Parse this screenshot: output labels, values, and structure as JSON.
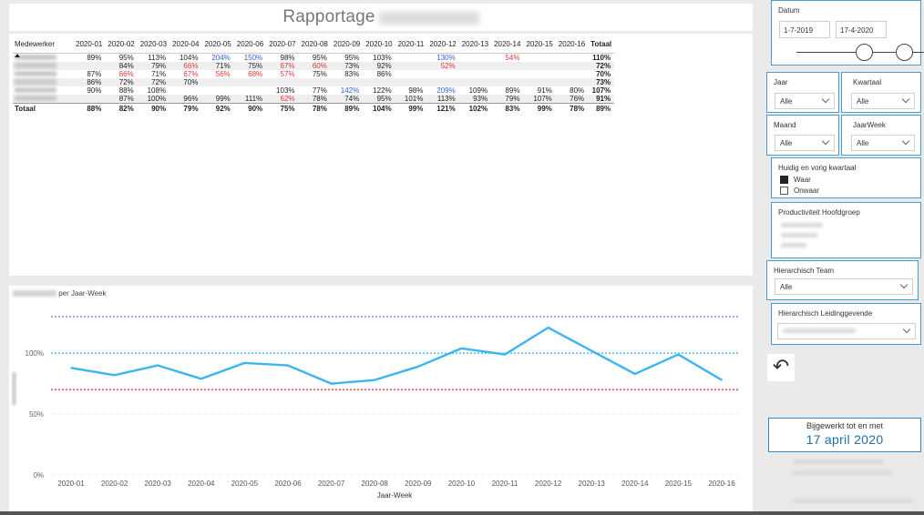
{
  "title": {
    "main": "Rapportage",
    "hidden_suffix": ""
  },
  "matrix": {
    "employee_header": "Medewerker",
    "columns": [
      "2020-01",
      "2020-02",
      "2020-03",
      "2020-04",
      "2020-05",
      "2020-06",
      "2020-07",
      "2020-08",
      "2020-09",
      "2020-10",
      "2020-11",
      "2020-12",
      "2020-13",
      "2020-14",
      "2020-15",
      "2020-16"
    ],
    "total_header": "Totaal",
    "rows": [
      {
        "band": false,
        "cells": [
          "89%",
          "95%",
          "113%",
          "104%",
          "204%",
          "150%",
          "98%",
          "95%",
          "95%",
          "103%",
          "",
          "130%",
          "",
          "54%",
          "",
          ""
        ],
        "total": "110%"
      },
      {
        "band": true,
        "cells": [
          "",
          "84%",
          "79%",
          "66%",
          "71%",
          "75%",
          "67%",
          "60%",
          "73%",
          "92%",
          "",
          "52%",
          "",
          "",
          "",
          ""
        ],
        "total": "72%"
      },
      {
        "band": false,
        "cells": [
          "87%",
          "66%",
          "71%",
          "67%",
          "56%",
          "68%",
          "57%",
          "75%",
          "83%",
          "86%",
          "",
          "",
          "",
          "",
          "",
          ""
        ],
        "total": "70%"
      },
      {
        "band": true,
        "cells": [
          "86%",
          "72%",
          "72%",
          "70%",
          "",
          "",
          "",
          "",
          "",
          "",
          "",
          "",
          "",
          "",
          "",
          ""
        ],
        "total": "73%"
      },
      {
        "band": false,
        "cells": [
          "90%",
          "88%",
          "108%",
          "",
          "",
          "",
          "103%",
          "77%",
          "142%",
          "122%",
          "98%",
          "209%",
          "109%",
          "89%",
          "91%",
          "80%"
        ],
        "total": "107%"
      },
      {
        "band": true,
        "cells": [
          "",
          "87%",
          "100%",
          "96%",
          "99%",
          "111%",
          "62%",
          "78%",
          "74%",
          "95%",
          "101%",
          "113%",
          "93%",
          "79%",
          "107%",
          "76%"
        ],
        "total": "91%"
      }
    ],
    "totals_label": "Totaal",
    "totals": [
      "88%",
      "82%",
      "90%",
      "79%",
      "92%",
      "90%",
      "75%",
      "78%",
      "89%",
      "104%",
      "99%",
      "121%",
      "102%",
      "83%",
      "99%",
      "78%"
    ],
    "grand_total": "89%"
  },
  "chart_data": {
    "type": "line",
    "title": "per Jaar-Week",
    "xlabel": "Jaar-Week",
    "ylabel": "",
    "categories": [
      "2020-01",
      "2020-02",
      "2020-03",
      "2020-04",
      "2020-05",
      "2020-06",
      "2020-07",
      "2020-08",
      "2020-09",
      "2020-10",
      "2020-11",
      "2020-12",
      "2020-13",
      "2020-14",
      "2020-15",
      "2020-16"
    ],
    "series": [
      {
        "values": [
          88,
          82,
          90,
          79,
          92,
          90,
          75,
          78,
          89,
          104,
          99,
          121,
          102,
          83,
          99,
          78
        ]
      }
    ],
    "reference_lines": [
      {
        "value": 130,
        "style": "dotted",
        "color": "#8f8ff0"
      },
      {
        "value": 100,
        "style": "dotted",
        "color": "#5ccaf0"
      },
      {
        "value": 70,
        "style": "dotted",
        "color": "#ee4a55"
      }
    ],
    "y_ticks": [
      0,
      50,
      100
    ],
    "y_tick_labels": [
      "0%",
      "50%",
      "100%"
    ],
    "ylim": [
      0,
      145
    ],
    "grid": true,
    "line_color": "#3cb4f0"
  },
  "filters": {
    "datum": {
      "label": "Datum",
      "start": "1-7-2019",
      "end": "17-4-2020"
    },
    "jaar": {
      "label": "Jaar",
      "value": "Alle"
    },
    "kwartaal": {
      "label": "Kwartaal",
      "value": "Alle"
    },
    "maand": {
      "label": "Maand",
      "value": "Alle"
    },
    "jaarweek": {
      "label": "JaarWeek",
      "value": "Alle"
    },
    "kwartaal_toggle": {
      "label": "Huidig en vorig kwartaal",
      "options": [
        "Waar",
        "Onwaar"
      ]
    },
    "hoofdgroep": {
      "label": "Productiviteit Hoofdgroep"
    },
    "team": {
      "label": "Hierarchisch Team",
      "value": "Alle"
    },
    "leidinggevende": {
      "label": "Hierarchisch Leidinggevende"
    }
  },
  "updated": {
    "label": "Bijgewerkt tot en met",
    "date": "17 april 2020"
  },
  "icons": {
    "reset": "undo-icon"
  }
}
